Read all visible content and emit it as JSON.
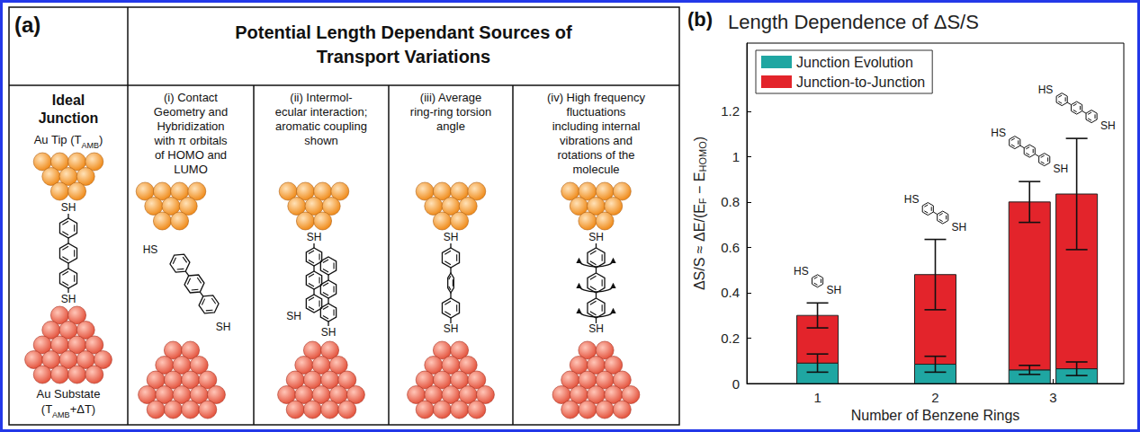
{
  "diagram": {
    "panel_label": "(a)",
    "title_lines": [
      "Potential Length Dependant Sources of",
      "Transport Variations"
    ],
    "columns": [
      {
        "header_lines": [
          "Ideal",
          "Junction"
        ],
        "tip_label": [
          {
            "text": "Au Tip (T"
          },
          {
            "sub": "AMB"
          },
          {
            "text": ")"
          }
        ],
        "substrate_label": [
          [
            {
              "text": "Au Substate"
            }
          ],
          [
            {
              "text": "(T"
            },
            {
              "sub": "AMB"
            },
            {
              "text": "+ΔT)"
            }
          ]
        ],
        "rings": 3,
        "thiol_labels": [
          "SH",
          "SH"
        ]
      },
      {
        "header_lines": [
          "(i) Contact",
          "Geometry and",
          "Hybridization",
          "with π orbitals",
          "of HOMO and",
          "LUMO"
        ],
        "rings": 3,
        "thiol_labels": [
          "HS",
          "SH"
        ]
      },
      {
        "header_lines": [
          "(ii) Intermol-",
          "ecular interaction;",
          "aromatic coupling",
          "shown"
        ],
        "rings": 3,
        "thiol_labels": [
          "SH",
          "SH",
          "SH"
        ]
      },
      {
        "header_lines": [
          "(iii) Average",
          "ring-ring torsion",
          "angle"
        ],
        "rings": 3,
        "thiol_labels": [
          "SH",
          "SH"
        ]
      },
      {
        "header_lines": [
          "(iv) High frequency",
          "fluctuations",
          "including internal",
          "vibrations and",
          "rotations of the",
          "molecule"
        ],
        "rings": 3,
        "thiol_labels": [
          "SH",
          "SH"
        ]
      }
    ]
  },
  "chart_data": {
    "type": "bar",
    "panel_label": "(b)",
    "title": "Length Dependence of ΔS/S",
    "xlabel": "Number of Benzene Rings",
    "ylabel": [
      {
        "text": "ΔS/S ≈ ΔE/(E"
      },
      {
        "sub": "F"
      },
      {
        "text": " − E"
      },
      {
        "sub": "HOMO"
      },
      {
        "text": ")"
      }
    ],
    "x": [
      1,
      2,
      2.8,
      3.2
    ],
    "xlim": [
      0.4,
      3.6
    ],
    "xticks": [
      1,
      2,
      3
    ],
    "ylim": [
      0,
      1.5
    ],
    "yticks": [
      0,
      0.2,
      0.4,
      0.6,
      0.8,
      1,
      1.2
    ],
    "stacked": true,
    "grid": false,
    "legend": "upper left",
    "series": [
      {
        "name": "Junction Evolution",
        "color": "#1fa6a2",
        "values": [
          0.09,
          0.085,
          0.06,
          0.065
        ],
        "errors": [
          0.04,
          0.035,
          0.02,
          0.03
        ]
      },
      {
        "name": "Junction-to-Junction",
        "color": "#e3242b",
        "values": [
          0.21,
          0.395,
          0.74,
          0.77
        ],
        "errors": [
          0.055,
          0.155,
          0.09,
          0.245
        ]
      }
    ],
    "insets": [
      {
        "rings": 1,
        "labels": [
          "HS",
          "SH"
        ]
      },
      {
        "rings": 2,
        "labels": [
          "HS",
          "SH"
        ]
      },
      {
        "rings": 3,
        "labels": [
          "HS",
          "SH"
        ]
      },
      {
        "rings": 3,
        "labels": [
          "HS",
          "SH"
        ]
      }
    ]
  }
}
